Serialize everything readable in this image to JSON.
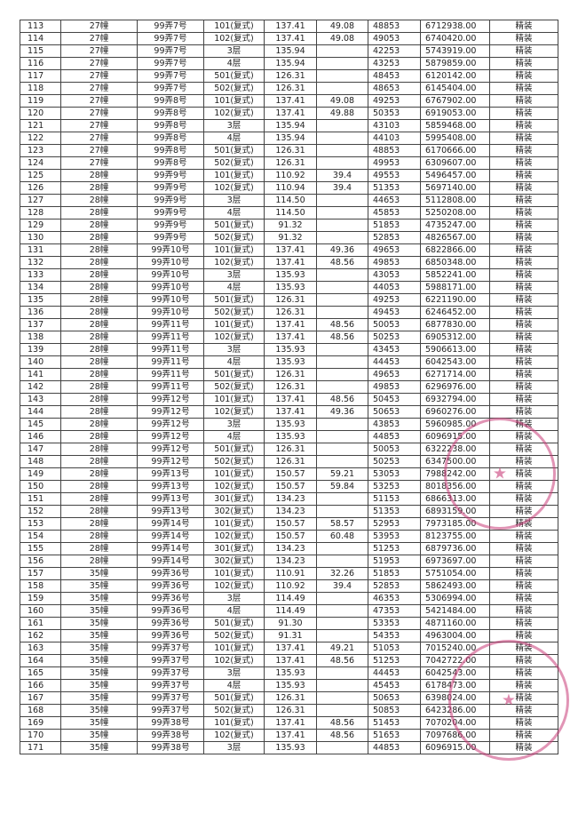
{
  "table": {
    "rows": [
      [
        "113",
        "27幢",
        "99弄7号",
        "101(复式)",
        "137.41",
        "49.08",
        "48853",
        "6712938.00",
        "精装"
      ],
      [
        "114",
        "27幢",
        "99弄7号",
        "102(复式)",
        "137.41",
        "49.08",
        "49053",
        "6740420.00",
        "精装"
      ],
      [
        "115",
        "27幢",
        "99弄7号",
        "3层",
        "135.94",
        "",
        "42253",
        "5743919.00",
        "精装"
      ],
      [
        "116",
        "27幢",
        "99弄7号",
        "4层",
        "135.94",
        "",
        "43253",
        "5879859.00",
        "精装"
      ],
      [
        "117",
        "27幢",
        "99弄7号",
        "501(复式)",
        "126.31",
        "",
        "48453",
        "6120142.00",
        "精装"
      ],
      [
        "118",
        "27幢",
        "99弄7号",
        "502(复式)",
        "126.31",
        "",
        "48653",
        "6145404.00",
        "精装"
      ],
      [
        "119",
        "27幢",
        "99弄8号",
        "101(复式)",
        "137.41",
        "49.08",
        "49253",
        "6767902.00",
        "精装"
      ],
      [
        "120",
        "27幢",
        "99弄8号",
        "102(复式)",
        "137.41",
        "49.88",
        "50353",
        "6919053.00",
        "精装"
      ],
      [
        "121",
        "27幢",
        "99弄8号",
        "3层",
        "135.94",
        "",
        "43103",
        "5859468.00",
        "精装"
      ],
      [
        "122",
        "27幢",
        "99弄8号",
        "4层",
        "135.94",
        "",
        "44103",
        "5995408.00",
        "精装"
      ],
      [
        "123",
        "27幢",
        "99弄8号",
        "501(复式)",
        "126.31",
        "",
        "48853",
        "6170666.00",
        "精装"
      ],
      [
        "124",
        "27幢",
        "99弄8号",
        "502(复式)",
        "126.31",
        "",
        "49953",
        "6309607.00",
        "精装"
      ],
      [
        "125",
        "28幢",
        "99弄9号",
        "101(复式)",
        "110.92",
        "39.4",
        "49553",
        "5496457.00",
        "精装"
      ],
      [
        "126",
        "28幢",
        "99弄9号",
        "102(复式)",
        "110.94",
        "39.4",
        "51353",
        "5697140.00",
        "精装"
      ],
      [
        "127",
        "28幢",
        "99弄9号",
        "3层",
        "114.50",
        "",
        "44653",
        "5112808.00",
        "精装"
      ],
      [
        "128",
        "28幢",
        "99弄9号",
        "4层",
        "114.50",
        "",
        "45853",
        "5250208.00",
        "精装"
      ],
      [
        "129",
        "28幢",
        "99弄9号",
        "501(复式)",
        "91.32",
        "",
        "51853",
        "4735247.00",
        "精装"
      ],
      [
        "130",
        "28幢",
        "99弄9号",
        "502(复式)",
        "91.32",
        "",
        "52853",
        "4826567.00",
        "精装"
      ],
      [
        "131",
        "28幢",
        "99弄10号",
        "101(复式)",
        "137.41",
        "49.36",
        "49653",
        "6822866.00",
        "精装"
      ],
      [
        "132",
        "28幢",
        "99弄10号",
        "102(复式)",
        "137.41",
        "48.56",
        "49853",
        "6850348.00",
        "精装"
      ],
      [
        "133",
        "28幢",
        "99弄10号",
        "3层",
        "135.93",
        "",
        "43053",
        "5852241.00",
        "精装"
      ],
      [
        "134",
        "28幢",
        "99弄10号",
        "4层",
        "135.93",
        "",
        "44053",
        "5988171.00",
        "精装"
      ],
      [
        "135",
        "28幢",
        "99弄10号",
        "501(复式)",
        "126.31",
        "",
        "49253",
        "6221190.00",
        "精装"
      ],
      [
        "136",
        "28幢",
        "99弄10号",
        "502(复式)",
        "126.31",
        "",
        "49453",
        "6246452.00",
        "精装"
      ],
      [
        "137",
        "28幢",
        "99弄11号",
        "101(复式)",
        "137.41",
        "48.56",
        "50053",
        "6877830.00",
        "精装"
      ],
      [
        "138",
        "28幢",
        "99弄11号",
        "102(复式)",
        "137.41",
        "48.56",
        "50253",
        "6905312.00",
        "精装"
      ],
      [
        "139",
        "28幢",
        "99弄11号",
        "3层",
        "135.93",
        "",
        "43453",
        "5906613.00",
        "精装"
      ],
      [
        "140",
        "28幢",
        "99弄11号",
        "4层",
        "135.93",
        "",
        "44453",
        "6042543.00",
        "精装"
      ],
      [
        "141",
        "28幢",
        "99弄11号",
        "501(复式)",
        "126.31",
        "",
        "49653",
        "6271714.00",
        "精装"
      ],
      [
        "142",
        "28幢",
        "99弄11号",
        "502(复式)",
        "126.31",
        "",
        "49853",
        "6296976.00",
        "精装"
      ],
      [
        "143",
        "28幢",
        "99弄12号",
        "101(复式)",
        "137.41",
        "48.56",
        "50453",
        "6932794.00",
        "精装"
      ],
      [
        "144",
        "28幢",
        "99弄12号",
        "102(复式)",
        "137.41",
        "49.36",
        "50653",
        "6960276.00",
        "精装"
      ],
      [
        "145",
        "28幢",
        "99弄12号",
        "3层",
        "135.93",
        "",
        "43853",
        "5960985.00",
        "精装"
      ],
      [
        "146",
        "28幢",
        "99弄12号",
        "4层",
        "135.93",
        "",
        "44853",
        "6096915.00",
        "精装"
      ],
      [
        "147",
        "28幢",
        "99弄12号",
        "501(复式)",
        "126.31",
        "",
        "50053",
        "6322238.00",
        "精装"
      ],
      [
        "148",
        "28幢",
        "99弄12号",
        "502(复式)",
        "126.31",
        "",
        "50253",
        "6347500.00",
        "精装"
      ],
      [
        "149",
        "28幢",
        "99弄13号",
        "101(复式)",
        "150.57",
        "59.21",
        "53053",
        "7988242.00",
        "精装"
      ],
      [
        "150",
        "28幢",
        "99弄13号",
        "102(复式)",
        "150.57",
        "59.84",
        "53253",
        "8018356.00",
        "精装"
      ],
      [
        "151",
        "28幢",
        "99弄13号",
        "301(复式)",
        "134.23",
        "",
        "51153",
        "6866313.00",
        "精装"
      ],
      [
        "152",
        "28幢",
        "99弄13号",
        "302(复式)",
        "134.23",
        "",
        "51353",
        "6893159.00",
        "精装"
      ],
      [
        "153",
        "28幢",
        "99弄14号",
        "101(复式)",
        "150.57",
        "58.57",
        "52953",
        "7973185.00",
        "精装"
      ],
      [
        "154",
        "28幢",
        "99弄14号",
        "102(复式)",
        "150.57",
        "60.48",
        "53953",
        "8123755.00",
        "精装"
      ],
      [
        "155",
        "28幢",
        "99弄14号",
        "301(复式)",
        "134.23",
        "",
        "51253",
        "6879736.00",
        "精装"
      ],
      [
        "156",
        "28幢",
        "99弄14号",
        "302(复式)",
        "134.23",
        "",
        "51953",
        "6973697.00",
        "精装"
      ],
      [
        "157",
        "35幢",
        "99弄36号",
        "101(复式)",
        "110.91",
        "32.26",
        "51853",
        "5751054.00",
        "精装"
      ],
      [
        "158",
        "35幢",
        "99弄36号",
        "102(复式)",
        "110.92",
        "39.4",
        "52853",
        "5862493.00",
        "精装"
      ],
      [
        "159",
        "35幢",
        "99弄36号",
        "3层",
        "114.49",
        "",
        "46353",
        "5306994.00",
        "精装"
      ],
      [
        "160",
        "35幢",
        "99弄36号",
        "4层",
        "114.49",
        "",
        "47353",
        "5421484.00",
        "精装"
      ],
      [
        "161",
        "35幢",
        "99弄36号",
        "501(复式)",
        "91.30",
        "",
        "53353",
        "4871160.00",
        "精装"
      ],
      [
        "162",
        "35幢",
        "99弄36号",
        "502(复式)",
        "91.31",
        "",
        "54353",
        "4963004.00",
        "精装"
      ],
      [
        "163",
        "35幢",
        "99弄37号",
        "101(复式)",
        "137.41",
        "49.21",
        "51053",
        "7015240.00",
        "精装"
      ],
      [
        "164",
        "35幢",
        "99弄37号",
        "102(复式)",
        "137.41",
        "48.56",
        "51253",
        "7042722.00",
        "精装"
      ],
      [
        "165",
        "35幢",
        "99弄37号",
        "3层",
        "135.93",
        "",
        "44453",
        "6042543.00",
        "精装"
      ],
      [
        "166",
        "35幢",
        "99弄37号",
        "4层",
        "135.93",
        "",
        "45453",
        "6178473.00",
        "精装"
      ],
      [
        "167",
        "35幢",
        "99弄37号",
        "501(复式)",
        "126.31",
        "",
        "50653",
        "6398024.00",
        "精装"
      ],
      [
        "168",
        "35幢",
        "99弄37号",
        "502(复式)",
        "126.31",
        "",
        "50853",
        "6423286.00",
        "精装"
      ],
      [
        "169",
        "35幢",
        "99弄38号",
        "101(复式)",
        "137.41",
        "48.56",
        "51453",
        "7070204.00",
        "精装"
      ],
      [
        "170",
        "35幢",
        "99弄38号",
        "102(复式)",
        "137.41",
        "48.56",
        "51653",
        "7097686.00",
        "精装"
      ],
      [
        "171",
        "35幢",
        "99弄38号",
        "3层",
        "135.93",
        "",
        "44853",
        "6096915.00",
        "精装"
      ]
    ]
  },
  "stamp_color": "#c83c78"
}
